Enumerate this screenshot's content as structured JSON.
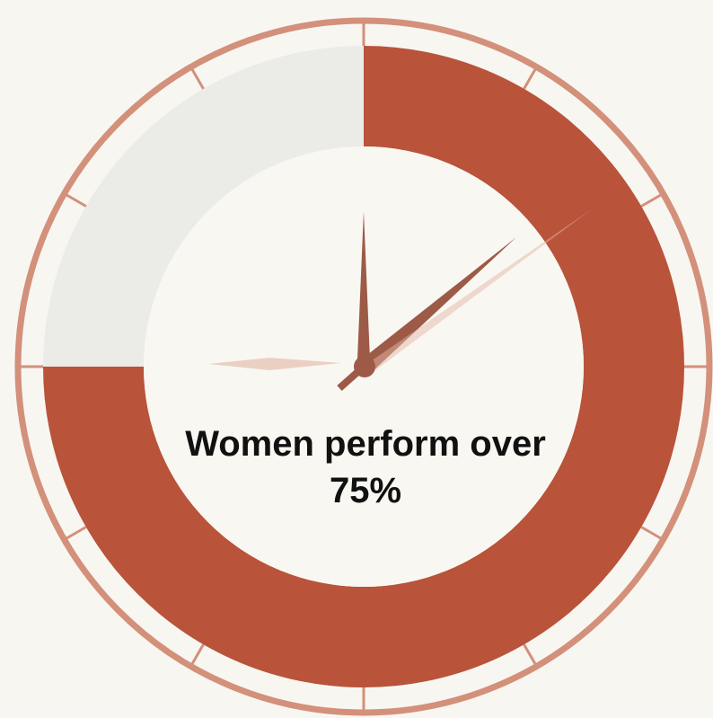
{
  "chart_data": {
    "type": "donut",
    "title": "Women perform over 75%",
    "values": [
      75,
      25
    ],
    "colors": [
      "#b9533a",
      "#ebebe8"
    ]
  }
}
